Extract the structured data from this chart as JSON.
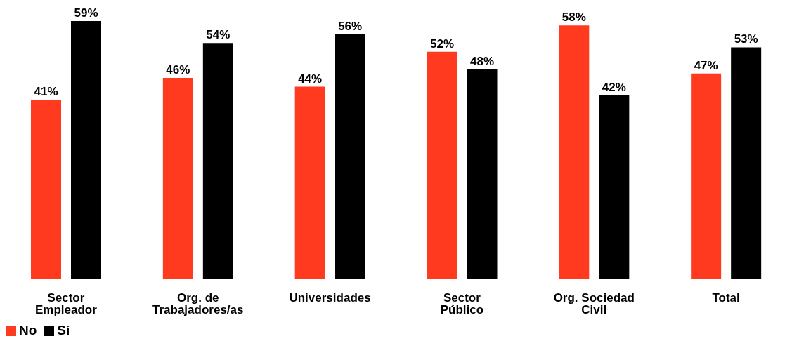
{
  "chart_data": {
    "type": "bar",
    "categories": [
      "Sector Empleador",
      "Org. de Trabajadores/as",
      "Universidades",
      "Sector Público",
      "Org. Sociedad Civil",
      "Total"
    ],
    "series": [
      {
        "name": "No",
        "color": "#ff3a1e",
        "values": [
          41,
          46,
          44,
          52,
          58,
          47
        ],
        "value_labels": [
          "41%",
          "46%",
          "44%",
          "52%",
          "58%",
          "47%"
        ]
      },
      {
        "name": "Sí",
        "color": "#000000",
        "values": [
          59,
          54,
          56,
          48,
          42,
          53
        ],
        "value_labels": [
          "59%",
          "54%",
          "56%",
          "48%",
          "42%",
          "53%"
        ]
      }
    ],
    "legend": "bottom left",
    "grid": false
  }
}
